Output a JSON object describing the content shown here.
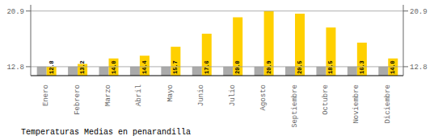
{
  "chart_data": {
    "type": "bar",
    "title": "Temperaturas Medias en penarandilla",
    "categories": [
      "Enero",
      "Febrero",
      "Marzo",
      "Abril",
      "Mayo",
      "Junio",
      "Julio",
      "Agosto",
      "Septiembre",
      "Octubre",
      "Noviembre",
      "Diciembre"
    ],
    "series": [
      {
        "color": "#AAAAAA",
        "values": [
          12.8,
          12.8,
          12.8,
          12.8,
          12.8,
          12.8,
          12.8,
          12.8,
          12.8,
          12.8,
          12.8,
          12.8
        ]
      },
      {
        "color": "#FFD000",
        "values": [
          12.8,
          13.2,
          14.0,
          14.4,
          15.7,
          17.6,
          20.0,
          20.9,
          20.5,
          18.5,
          16.3,
          14.0
        ],
        "data_labels": true,
        "value_labels": [
          "12.8",
          "13.2",
          "14.0",
          "14.4",
          "15.7",
          "17.6",
          "20.0",
          "20.9",
          "20.5",
          "18.5",
          "16.3",
          "14.0"
        ]
      }
    ],
    "ylim": [
      11.5,
      21.8
    ],
    "yticks": [
      12.8,
      20.9
    ],
    "y2lim": [
      11.5,
      21.8
    ],
    "y2ticks": [
      12.8,
      20.9
    ],
    "hlines": [
      20.9,
      12.8
    ],
    "grid": false
  }
}
